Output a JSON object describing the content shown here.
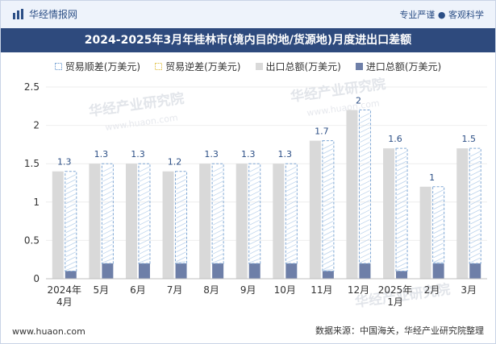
{
  "header": {
    "brand": "华经情报网",
    "tagline": "专业严谨 ● 客观科学",
    "title": "2024-2025年3月年桂林市(境内目的地/货源地)月度进出口差额"
  },
  "footer": {
    "website": "www.huaon.com",
    "source": "数据来源：中国海关，华经产业研究院整理"
  },
  "watermark": "华经产业研究院",
  "watermark_url": "www.huaon.com",
  "colors": {
    "export_total": "#d9d9d9",
    "import_total": "#6e7fa8",
    "surplus": "#7ea6d4",
    "deficit": "#e3c75a",
    "title_bg": "#2e4a7d"
  },
  "chart_data": {
    "type": "bar",
    "categories": [
      "2024年\n4月",
      "5月",
      "6月",
      "7月",
      "8月",
      "9月",
      "10月",
      "11月",
      "12月",
      "2025年\n1月",
      "2月",
      "3月"
    ],
    "ylim": [
      0,
      2.5
    ],
    "yticks": [
      0,
      0.5,
      1,
      1.5,
      2,
      2.5
    ],
    "series": [
      {
        "name": "贸易顺差(万美元)",
        "values": [
          1.3,
          1.3,
          1.3,
          1.2,
          1.3,
          1.3,
          1.3,
          1.7,
          2,
          1.6,
          1,
          1.5
        ]
      },
      {
        "name": "贸易逆差(万美元)",
        "values": [
          0,
          0,
          0,
          0,
          0,
          0,
          0,
          0,
          0,
          0,
          0,
          0
        ]
      },
      {
        "name": "出口总额(万美元)",
        "values": [
          1.4,
          1.5,
          1.5,
          1.4,
          1.5,
          1.5,
          1.5,
          1.8,
          2.2,
          1.7,
          1.2,
          1.7
        ]
      },
      {
        "name": "进口总额(万美元)",
        "values": [
          0.1,
          0.2,
          0.2,
          0.2,
          0.2,
          0.2,
          0.2,
          0.1,
          0.2,
          0.1,
          0.2,
          0.2
        ]
      }
    ],
    "data_labels": [
      "1.3",
      "1.3",
      "1.3",
      "1.2",
      "1.3",
      "1.3",
      "1.3",
      "1.7",
      "2",
      "1.6",
      "1",
      "1.5"
    ]
  }
}
